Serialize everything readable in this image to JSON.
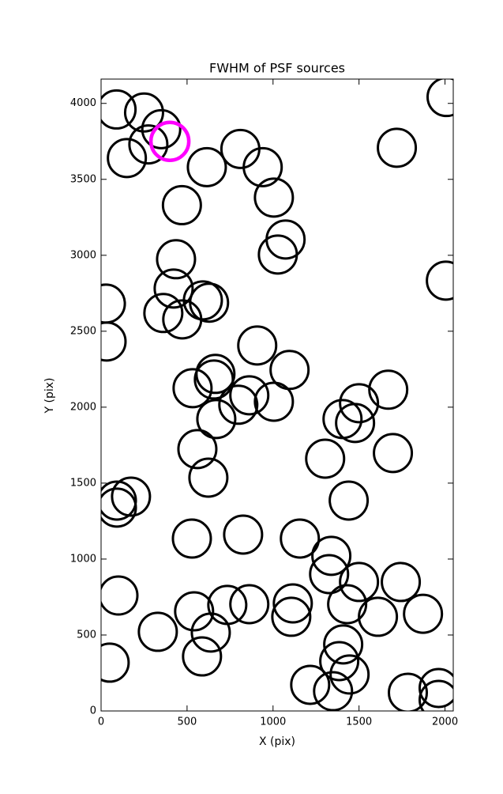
{
  "chart_data": {
    "type": "scatter",
    "title": "FWHM of PSF sources",
    "x_label": "X (pix)",
    "y_label": "Y (pix)",
    "xlim": [
      0,
      2048
    ],
    "ylim": [
      0,
      4160
    ],
    "xticks": [
      0,
      500,
      1000,
      1500,
      2000
    ],
    "yticks": [
      0,
      500,
      1000,
      1500,
      2000,
      2500,
      3000,
      3500,
      4000
    ],
    "grid": false,
    "series": [
      {
        "color": "#000000",
        "x": [
          90,
          250,
          350,
          275,
          150,
          470,
          615,
          810,
          940,
          1005,
          1073,
          1028,
          1720,
          2009,
          2005,
          436,
          422,
          362,
          472,
          592,
          628,
          28,
          32,
          908,
          1096,
          665,
          656,
          532,
          798,
          862,
          1005,
          670,
          560,
          624,
          1404,
          1500,
          1477,
          1670,
          1697,
          1303,
          1440,
          174,
          92,
          92,
          528,
          826,
          1156,
          1339,
          1326,
          1500,
          1743,
          1431,
          1610,
          1872,
          101,
          1115,
          1106,
          862,
          734,
          541,
          638,
          330,
          587,
          50,
          1408,
          1385,
          1445,
          1216,
          1349,
          1784,
          1963,
          1963
        ],
        "y": [
          3960,
          3940,
          3830,
          3730,
          3640,
          3330,
          3580,
          3700,
          3580,
          3380,
          3104,
          3005,
          3708,
          4042,
          2833,
          2974,
          2781,
          2620,
          2578,
          2703,
          2688,
          2682,
          2432,
          2406,
          2245,
          2219,
          2182,
          2125,
          2016,
          2078,
          2036,
          1922,
          1724,
          1536,
          1922,
          2026,
          1896,
          2115,
          1698,
          1661,
          1385,
          1411,
          1339,
          1385,
          1135,
          1161,
          1135,
          1021,
          901,
          849,
          849,
          703,
          620,
          640,
          760,
          708,
          620,
          703,
          698,
          656,
          516,
          521,
          359,
          318,
          438,
          328,
          240,
          172,
          130,
          120,
          151,
          73
        ]
      },
      {
        "color": "#ff00ff",
        "x": [
          400
        ],
        "y": [
          3750
        ]
      }
    ]
  }
}
